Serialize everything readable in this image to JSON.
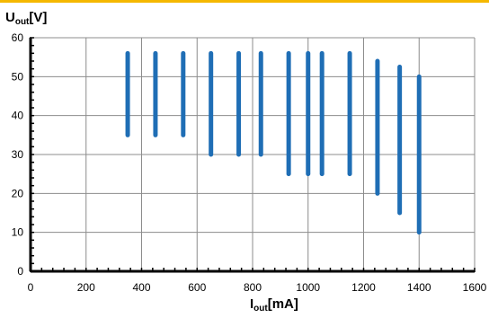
{
  "colors": {
    "accent_bar": "#f5b800",
    "series": "#1f6eb5",
    "grid": "#8c8c8c",
    "axis": "#000000"
  },
  "chart_data": {
    "type": "range-bar",
    "ylabel": {
      "main": "U",
      "sub": "out",
      "unit": "[V]"
    },
    "xlabel": {
      "main": "I",
      "sub": "out",
      "unit": "[mA]"
    },
    "xlim": [
      0,
      1600
    ],
    "ylim": [
      0,
      60
    ],
    "xticks": [
      0,
      200,
      400,
      600,
      800,
      1000,
      1200,
      1400,
      1600
    ],
    "yticks": [
      0,
      10,
      20,
      30,
      40,
      50,
      60
    ],
    "grid": true,
    "ranges": [
      {
        "x": 350,
        "ymin": 35,
        "ymax": 56
      },
      {
        "x": 450,
        "ymin": 35,
        "ymax": 56
      },
      {
        "x": 550,
        "ymin": 35,
        "ymax": 56
      },
      {
        "x": 650,
        "ymin": 30,
        "ymax": 56
      },
      {
        "x": 750,
        "ymin": 30,
        "ymax": 56
      },
      {
        "x": 830,
        "ymin": 30,
        "ymax": 56
      },
      {
        "x": 930,
        "ymin": 25,
        "ymax": 56
      },
      {
        "x": 1000,
        "ymin": 25,
        "ymax": 56
      },
      {
        "x": 1050,
        "ymin": 25,
        "ymax": 56
      },
      {
        "x": 1150,
        "ymin": 25,
        "ymax": 56
      },
      {
        "x": 1250,
        "ymin": 20,
        "ymax": 54
      },
      {
        "x": 1330,
        "ymin": 15,
        "ymax": 52.5
      },
      {
        "x": 1400,
        "ymin": 10,
        "ymax": 50
      }
    ]
  }
}
